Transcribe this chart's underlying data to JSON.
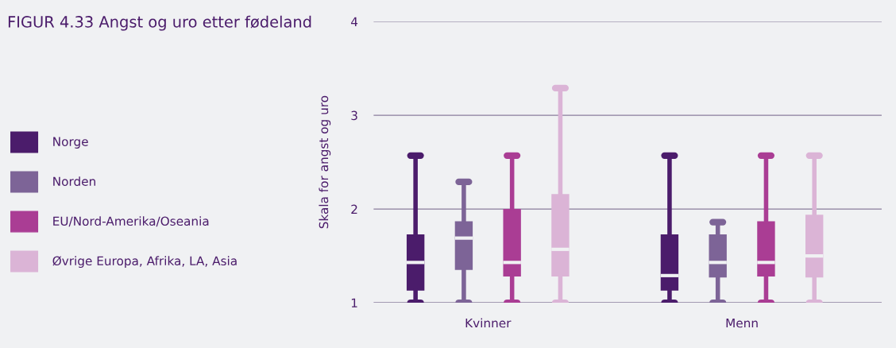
{
  "chart_data": {
    "type": "box",
    "title": "FIGUR 4.33 Angst og uro etter fødeland",
    "ylabel": "Skala for angst og uro",
    "categories": [
      "Kvinner",
      "Menn"
    ],
    "ylim": [
      1,
      4
    ],
    "yticks": [
      1,
      2,
      3,
      4
    ],
    "grid": "y",
    "legend": "left",
    "series": [
      {
        "name": "Norge",
        "color": "#4b1c6b",
        "boxes": [
          {
            "low": 1,
            "q1": 1.13,
            "median": 1.43,
            "q3": 1.73,
            "high": 2.57
          },
          {
            "low": 1,
            "q1": 1.13,
            "median": 1.29,
            "q3": 1.73,
            "high": 2.57
          }
        ]
      },
      {
        "name": "Norden",
        "color": "#7d6497",
        "boxes": [
          {
            "low": 1,
            "q1": 1.35,
            "median": 1.69,
            "q3": 1.87,
            "high": 2.29
          },
          {
            "low": 1,
            "q1": 1.27,
            "median": 1.43,
            "q3": 1.73,
            "high": 1.86
          }
        ]
      },
      {
        "name": "EU/Nord-Amerika/Oseania",
        "color": "#aa3d94",
        "boxes": [
          {
            "low": 1,
            "q1": 1.28,
            "median": 1.43,
            "q3": 2.0,
            "high": 2.57
          },
          {
            "low": 1,
            "q1": 1.28,
            "median": 1.43,
            "q3": 1.87,
            "high": 2.57
          }
        ]
      },
      {
        "name": "Øvrige Europa, Afrika, LA, Asia",
        "color": "#dbb4d6",
        "boxes": [
          {
            "low": 1,
            "q1": 1.28,
            "median": 1.57,
            "q3": 2.16,
            "high": 3.29
          },
          {
            "low": 1,
            "q1": 1.27,
            "median": 1.5,
            "q3": 1.94,
            "high": 2.57
          }
        ]
      }
    ]
  }
}
